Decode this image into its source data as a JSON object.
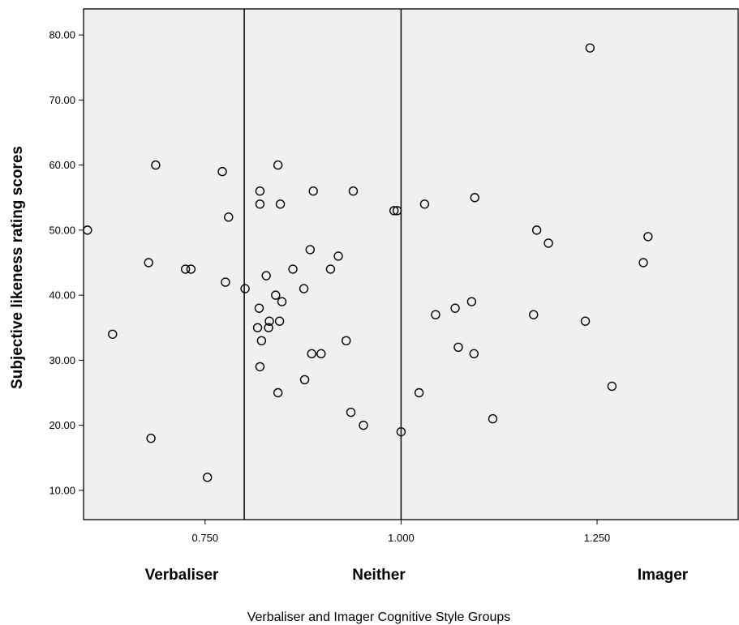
{
  "chart_data": {
    "type": "scatter",
    "title": "",
    "xlabel": "Verbaliser and Imager Cognitive Style Groups",
    "ylabel": "Subjective likeness rating scores",
    "xlim": [
      0.595,
      1.43
    ],
    "ylim": [
      5.5,
      84.0
    ],
    "x_ticks": [
      "0.750",
      "1.000",
      "1.250"
    ],
    "y_ticks": [
      "10.00",
      "20.00",
      "30.00",
      "40.00",
      "50.00",
      "60.00",
      "70.00",
      "80.00"
    ],
    "reference_lines_x": [
      0.8,
      1.0
    ],
    "group_labels": [
      "Verbaliser",
      "Neither",
      "Imager"
    ],
    "grid": false,
    "plot_background": "#f0f0f0",
    "marker": "open circle",
    "points": [
      {
        "x": 0.6,
        "y": 50
      },
      {
        "x": 0.632,
        "y": 34
      },
      {
        "x": 0.678,
        "y": 45
      },
      {
        "x": 0.681,
        "y": 18
      },
      {
        "x": 0.687,
        "y": 60
      },
      {
        "x": 0.725,
        "y": 44
      },
      {
        "x": 0.732,
        "y": 44
      },
      {
        "x": 0.753,
        "y": 12
      },
      {
        "x": 0.772,
        "y": 59
      },
      {
        "x": 0.776,
        "y": 42
      },
      {
        "x": 0.78,
        "y": 52
      },
      {
        "x": 0.801,
        "y": 41
      },
      {
        "x": 0.817,
        "y": 35
      },
      {
        "x": 0.82,
        "y": 56
      },
      {
        "x": 0.82,
        "y": 54
      },
      {
        "x": 0.819,
        "y": 38
      },
      {
        "x": 0.822,
        "y": 33
      },
      {
        "x": 0.82,
        "y": 29
      },
      {
        "x": 0.828,
        "y": 43
      },
      {
        "x": 0.831,
        "y": 35
      },
      {
        "x": 0.832,
        "y": 36
      },
      {
        "x": 0.84,
        "y": 40
      },
      {
        "x": 0.843,
        "y": 60
      },
      {
        "x": 0.843,
        "y": 25
      },
      {
        "x": 0.845,
        "y": 36
      },
      {
        "x": 0.846,
        "y": 54
      },
      {
        "x": 0.848,
        "y": 39
      },
      {
        "x": 0.862,
        "y": 44
      },
      {
        "x": 0.876,
        "y": 41
      },
      {
        "x": 0.877,
        "y": 27
      },
      {
        "x": 0.884,
        "y": 47
      },
      {
        "x": 0.886,
        "y": 31
      },
      {
        "x": 0.888,
        "y": 56
      },
      {
        "x": 0.898,
        "y": 31
      },
      {
        "x": 0.91,
        "y": 44
      },
      {
        "x": 0.92,
        "y": 46
      },
      {
        "x": 0.93,
        "y": 33
      },
      {
        "x": 0.936,
        "y": 22
      },
      {
        "x": 0.939,
        "y": 56
      },
      {
        "x": 0.952,
        "y": 20
      },
      {
        "x": 0.991,
        "y": 53
      },
      {
        "x": 0.995,
        "y": 53
      },
      {
        "x": 1.0,
        "y": 19
      },
      {
        "x": 1.023,
        "y": 25
      },
      {
        "x": 1.03,
        "y": 54
      },
      {
        "x": 1.044,
        "y": 37
      },
      {
        "x": 1.069,
        "y": 38
      },
      {
        "x": 1.073,
        "y": 32
      },
      {
        "x": 1.09,
        "y": 39
      },
      {
        "x": 1.093,
        "y": 31
      },
      {
        "x": 1.094,
        "y": 55
      },
      {
        "x": 1.117,
        "y": 21
      },
      {
        "x": 1.169,
        "y": 37
      },
      {
        "x": 1.173,
        "y": 50
      },
      {
        "x": 1.188,
        "y": 48
      },
      {
        "x": 1.235,
        "y": 36
      },
      {
        "x": 1.241,
        "y": 78
      },
      {
        "x": 1.269,
        "y": 26
      },
      {
        "x": 1.309,
        "y": 45
      },
      {
        "x": 1.315,
        "y": 49
      }
    ]
  }
}
